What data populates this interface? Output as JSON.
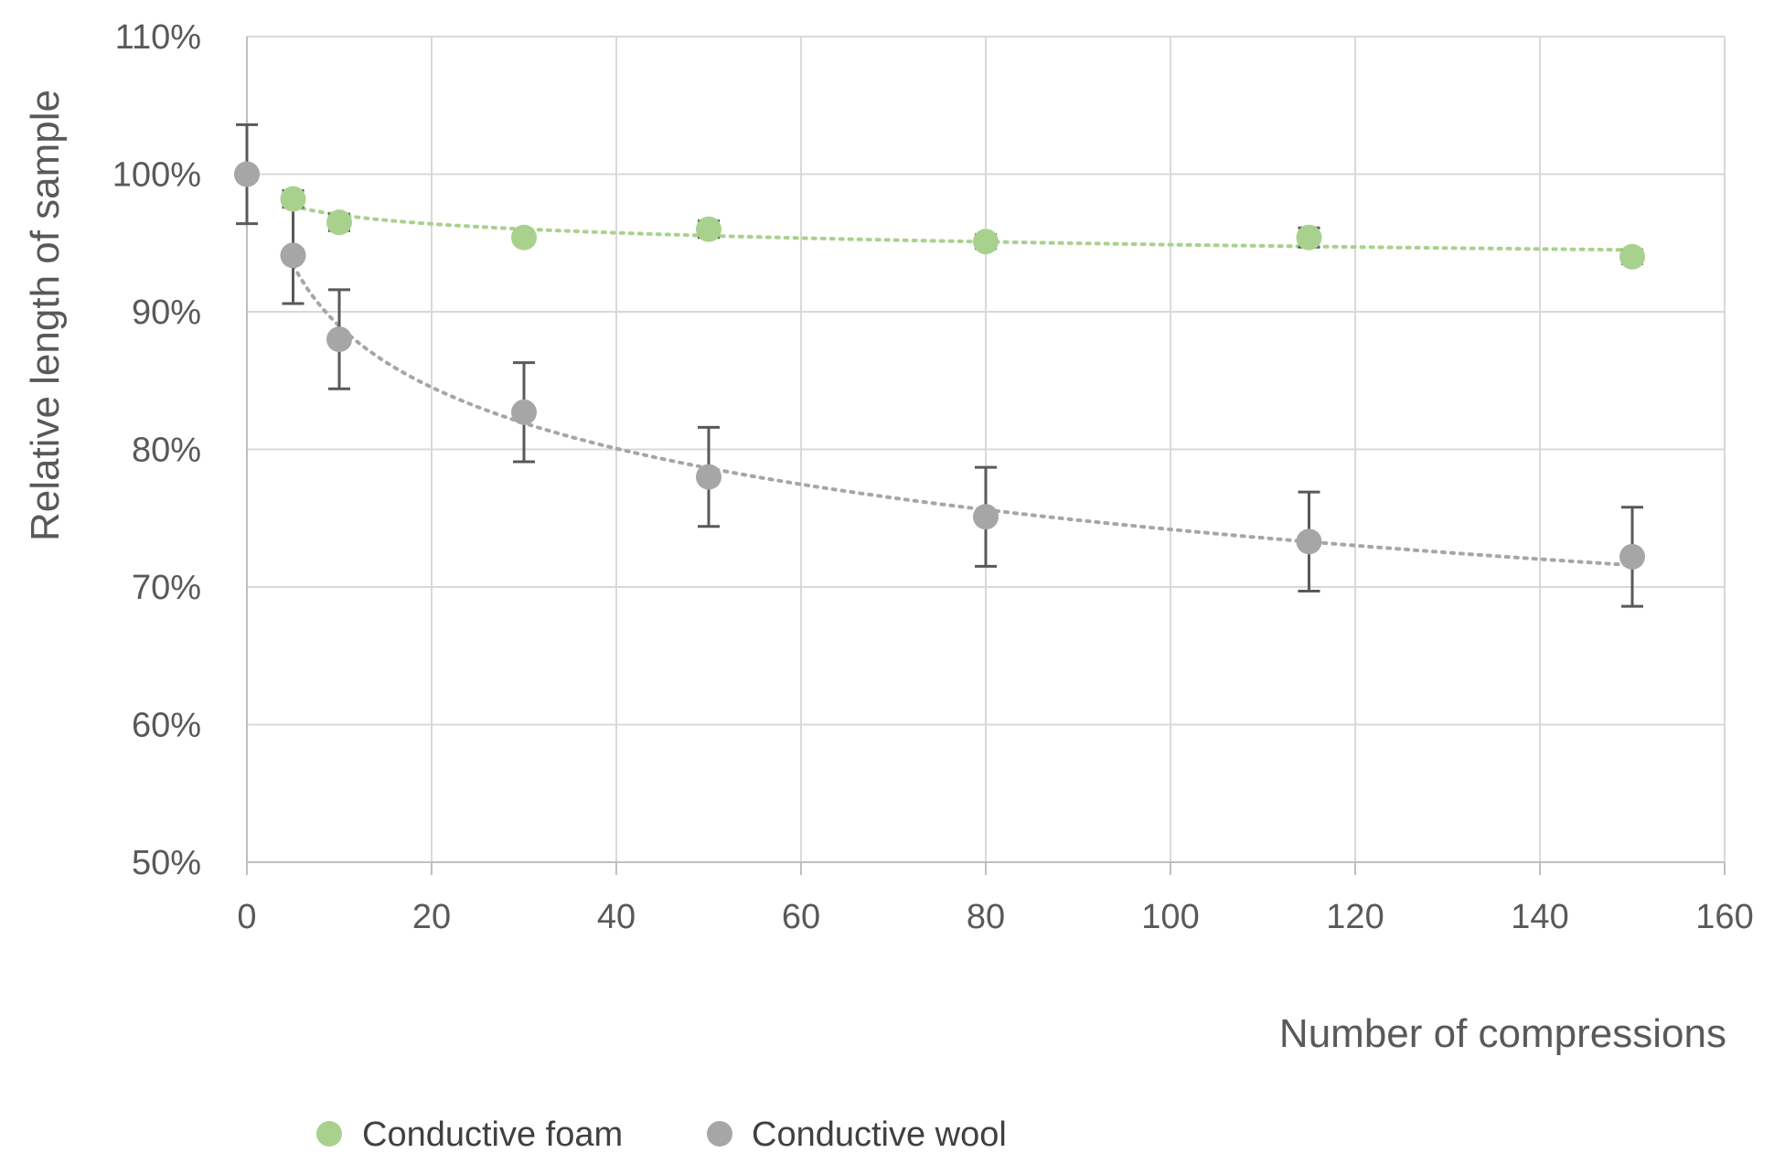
{
  "chart_data": {
    "type": "scatter",
    "title": "",
    "xlabel": "Number of compressions",
    "ylabel": "Relative length of sample",
    "xlim": [
      0,
      160
    ],
    "ylim": [
      50,
      110
    ],
    "x_ticks": [
      0,
      20,
      40,
      60,
      80,
      100,
      120,
      140,
      160
    ],
    "x_tick_labels": [
      "0",
      "20",
      "40",
      "60",
      "80",
      "100",
      "120",
      "140",
      "160"
    ],
    "y_ticks": [
      50,
      60,
      70,
      80,
      90,
      100,
      110
    ],
    "y_tick_labels": [
      "50%",
      "60%",
      "70%",
      "80%",
      "90%",
      "100%",
      "110%"
    ],
    "grid": true,
    "legend_position": "bottom",
    "series": [
      {
        "name": "Conductive foam",
        "color": "#a9d18e",
        "trendline": "logarithmic, dotted",
        "points": [
          {
            "x": 0,
            "y": 100.0,
            "err": 0
          },
          {
            "x": 5,
            "y": 98.2,
            "err": 0.6
          },
          {
            "x": 10,
            "y": 96.5,
            "err": 0.6
          },
          {
            "x": 30,
            "y": 95.4,
            "err": 0.3
          },
          {
            "x": 50,
            "y": 96.0,
            "err": 0.6
          },
          {
            "x": 80,
            "y": 95.1,
            "err": 0.5
          },
          {
            "x": 115,
            "y": 95.4,
            "err": 0.7
          },
          {
            "x": 150,
            "y": 94.0,
            "err": 0.5
          }
        ]
      },
      {
        "name": "Conductive wool",
        "color": "#a6a6a6",
        "trendline": "logarithmic, dotted",
        "points": [
          {
            "x": 0,
            "y": 100.0,
            "err": 3.6
          },
          {
            "x": 5,
            "y": 94.1,
            "err": 3.5
          },
          {
            "x": 10,
            "y": 88.0,
            "err": 3.6
          },
          {
            "x": 30,
            "y": 82.7,
            "err": 3.6
          },
          {
            "x": 50,
            "y": 78.0,
            "err": 3.6
          },
          {
            "x": 80,
            "y": 75.1,
            "err": 3.6
          },
          {
            "x": 115,
            "y": 73.3,
            "err": 3.6
          },
          {
            "x": 150,
            "y": 72.2,
            "err": 3.6
          }
        ]
      }
    ]
  }
}
